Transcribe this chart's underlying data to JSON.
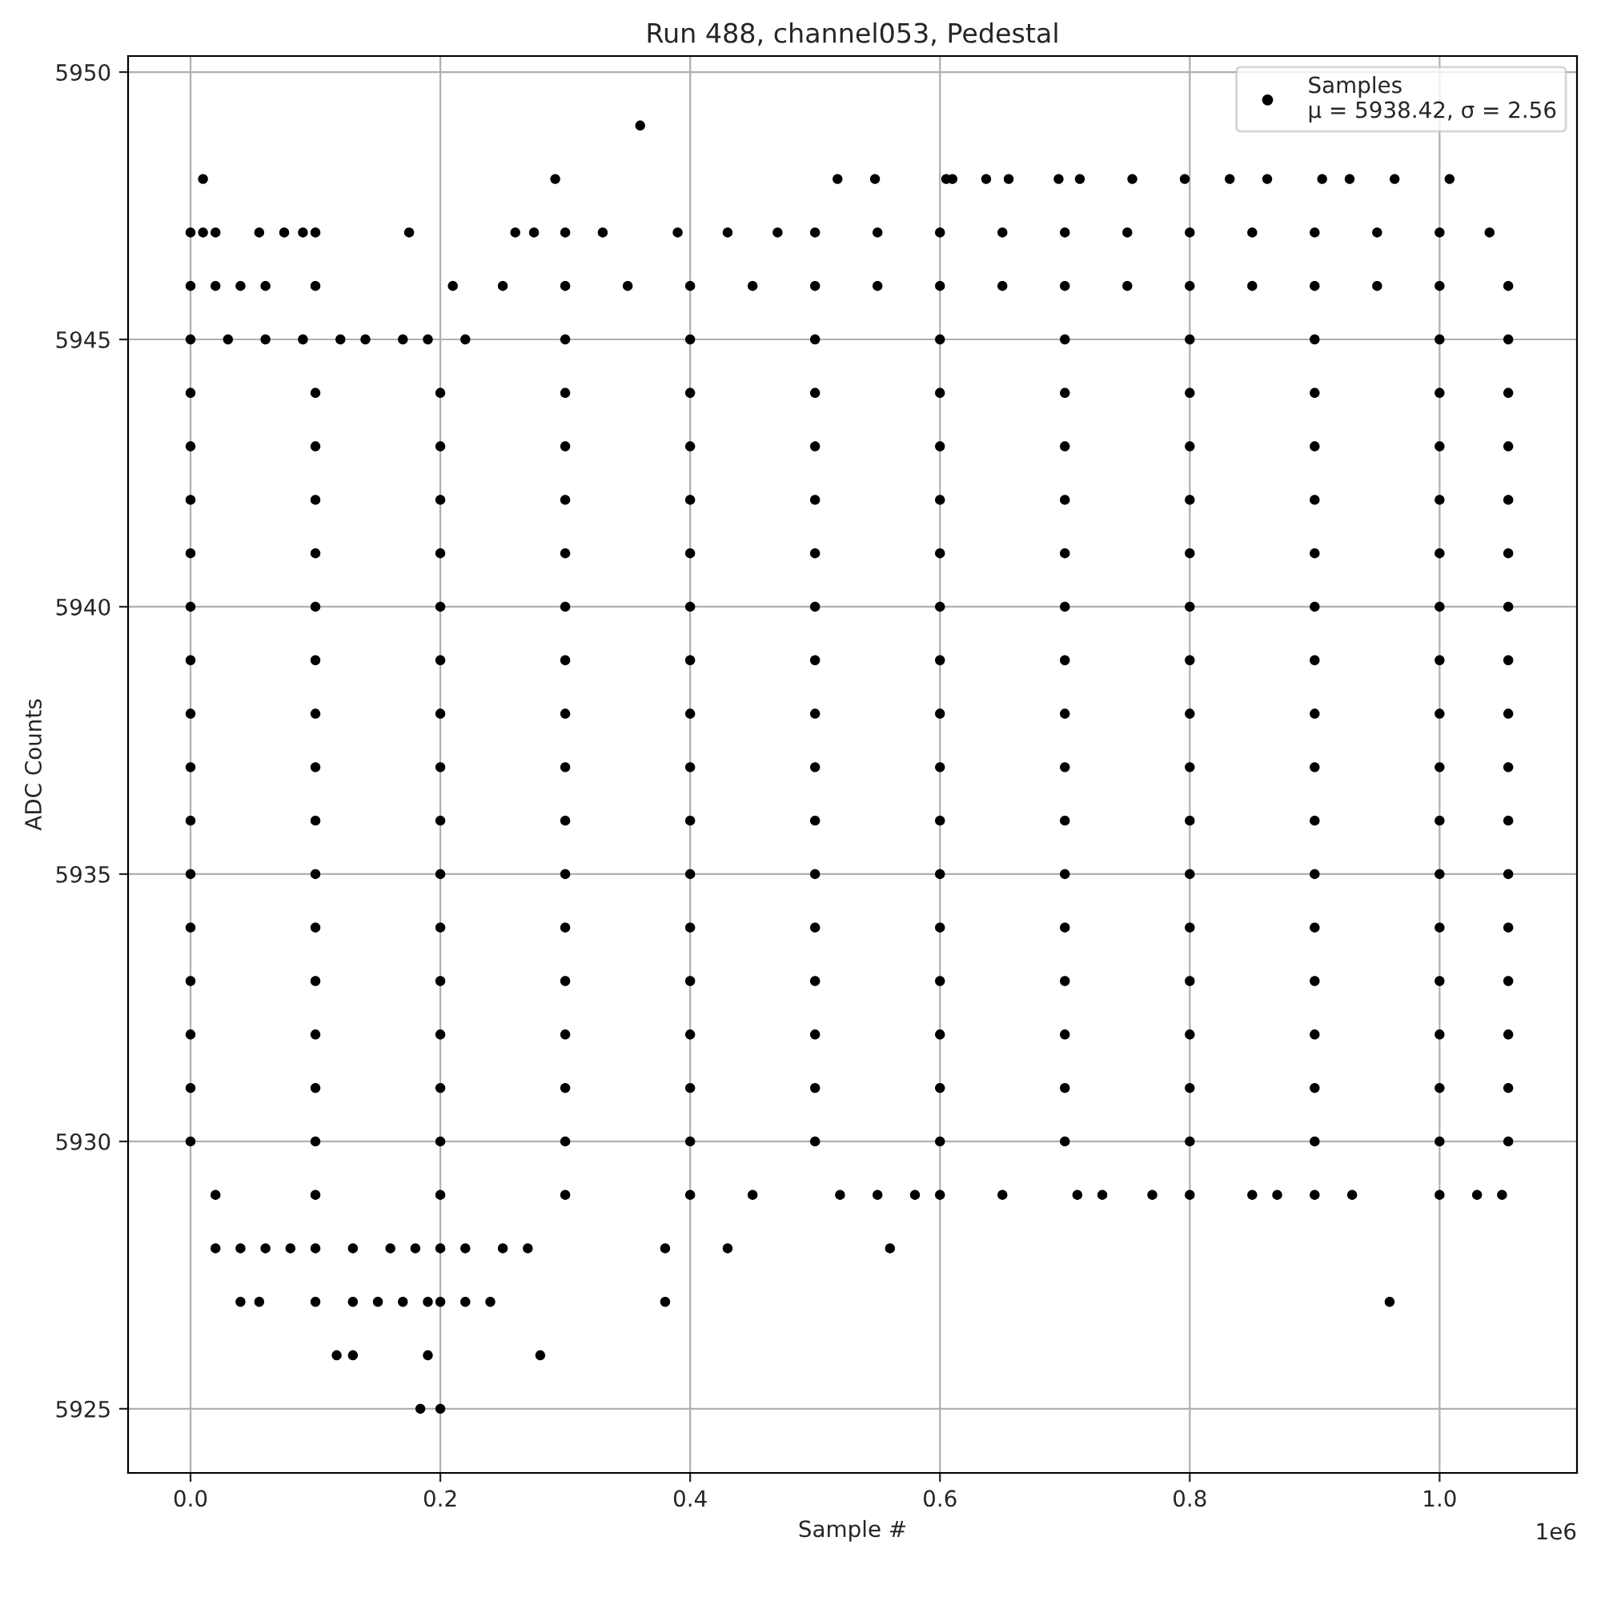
{
  "chart_data": {
    "type": "scatter",
    "title": "Run 488, channel053, Pedestal",
    "xlabel": "Sample #",
    "ylabel": "ADC Counts",
    "annotations": [
      "1e6"
    ],
    "xlim": [
      -0.05,
      1.11
    ],
    "ylim": [
      5923.8,
      5950.3
    ],
    "xticks": [
      {
        "value": 0,
        "label": "0.0"
      },
      0.2,
      0.4,
      0.6,
      0.8,
      {
        "value": 1,
        "label": "1.0"
      }
    ],
    "yticks": [
      5925,
      5930,
      5935,
      5940,
      5945,
      5950
    ],
    "grid": true,
    "legend": "top right",
    "marker": "circle",
    "series": [
      {
        "name": "Samples\nμ = 5938.42, σ = 2.56",
        "color": "#000000",
        "x": [
          0.36,
          0.01,
          0.292,
          0.518,
          0.548,
          0.605,
          0.61,
          0.637,
          0.655,
          0.695,
          0.712,
          0.754,
          0.796,
          0.832,
          0.862,
          0.906,
          0.928,
          0.964,
          1.008,
          0,
          0.01,
          0.02,
          0.055,
          0.075,
          0.09,
          0.1,
          0.175,
          0.26,
          0.275,
          0.3,
          0.33,
          0.39,
          0.43,
          0.47,
          0.5,
          0.55,
          0.6,
          0.65,
          0.7,
          0.75,
          0.8,
          0.85,
          0.9,
          0.95,
          1.0,
          1.04,
          0,
          0.02,
          0.04,
          0.06,
          0.1,
          0.21,
          0.25,
          0.3,
          0.35,
          0.4,
          0.45,
          0.5,
          0.55,
          0.6,
          0.65,
          0.7,
          0.75,
          0.8,
          0.85,
          0.9,
          0.95,
          1.0,
          1.055,
          0,
          0.03,
          0.06,
          0.09,
          0.12,
          0.14,
          0.17,
          0.19,
          0.22,
          0.3,
          0.4,
          0.5,
          0.6,
          0.7,
          0.8,
          0.9,
          1.0,
          1.055,
          0,
          0.1,
          0.2,
          0.3,
          0.4,
          0.5,
          0.6,
          0.7,
          0.8,
          0.9,
          1.0,
          1.055,
          0,
          0.1,
          0.2,
          0.3,
          0.4,
          0.5,
          0.6,
          0.7,
          0.8,
          0.9,
          1.0,
          1.055,
          0,
          0.1,
          0.2,
          0.3,
          0.4,
          0.5,
          0.6,
          0.7,
          0.8,
          0.9,
          1.0,
          1.055,
          0,
          0.1,
          0.2,
          0.3,
          0.4,
          0.5,
          0.6,
          0.7,
          0.8,
          0.9,
          1.0,
          1.055,
          0,
          0.1,
          0.2,
          0.3,
          0.4,
          0.5,
          0.6,
          0.7,
          0.8,
          0.9,
          1.0,
          1.055,
          0,
          0.1,
          0.2,
          0.3,
          0.4,
          0.5,
          0.6,
          0.7,
          0.8,
          0.9,
          1.0,
          1.055,
          0,
          0.1,
          0.2,
          0.3,
          0.4,
          0.5,
          0.6,
          0.7,
          0.8,
          0.9,
          1.0,
          1.055,
          0,
          0.1,
          0.2,
          0.3,
          0.4,
          0.5,
          0.6,
          0.7,
          0.8,
          0.9,
          1.0,
          1.055,
          0,
          0.1,
          0.2,
          0.3,
          0.4,
          0.5,
          0.6,
          0.7,
          0.8,
          0.9,
          1.0,
          1.055,
          0,
          0.1,
          0.2,
          0.3,
          0.4,
          0.5,
          0.6,
          0.7,
          0.8,
          0.9,
          1.0,
          1.055,
          0,
          0.1,
          0.2,
          0.3,
          0.4,
          0.5,
          0.6,
          0.7,
          0.8,
          0.9,
          1.0,
          1.055,
          0,
          0.1,
          0.2,
          0.3,
          0.4,
          0.5,
          0.6,
          0.7,
          0.8,
          0.9,
          1.0,
          1.055,
          0,
          0.1,
          0.2,
          0.3,
          0.4,
          0.5,
          0.6,
          0.7,
          0.8,
          0.9,
          1.0,
          1.055,
          0,
          0.1,
          0.2,
          0.3,
          0.4,
          0.5,
          0.6,
          0.7,
          0.8,
          0.9,
          1.0,
          1.055,
          0,
          0.1,
          0.2,
          0.3,
          0.4,
          0.5,
          0.6,
          0.7,
          0.8,
          0.9,
          1.0,
          1.055,
          0.02,
          0.1,
          0.2,
          0.3,
          0.4,
          0.45,
          0.52,
          0.55,
          0.58,
          0.6,
          0.65,
          0.71,
          0.73,
          0.77,
          0.8,
          0.85,
          0.87,
          0.9,
          0.93,
          1.0,
          1.03,
          1.05,
          0.02,
          0.04,
          0.06,
          0.08,
          0.1,
          0.13,
          0.16,
          0.18,
          0.2,
          0.22,
          0.25,
          0.27,
          0.38,
          0.43,
          0.56,
          0.04,
          0.055,
          0.1,
          0.13,
          0.15,
          0.17,
          0.19,
          0.2,
          0.22,
          0.24,
          0.38,
          0.96,
          0.117,
          0.13,
          0.19,
          0.28,
          0.184,
          0.2
        ],
        "values": [
          5949,
          5948,
          5948,
          5948,
          5948,
          5948,
          5948,
          5948,
          5948,
          5948,
          5948,
          5948,
          5948,
          5948,
          5948,
          5948,
          5948,
          5948,
          5948,
          5947,
          5947,
          5947,
          5947,
          5947,
          5947,
          5947,
          5947,
          5947,
          5947,
          5947,
          5947,
          5947,
          5947,
          5947,
          5947,
          5947,
          5947,
          5947,
          5947,
          5947,
          5947,
          5947,
          5947,
          5947,
          5947,
          5947,
          5946,
          5946,
          5946,
          5946,
          5946,
          5946,
          5946,
          5946,
          5946,
          5946,
          5946,
          5946,
          5946,
          5946,
          5946,
          5946,
          5946,
          5946,
          5946,
          5946,
          5946,
          5946,
          5946,
          5945,
          5945,
          5945,
          5945,
          5945,
          5945,
          5945,
          5945,
          5945,
          5945,
          5945,
          5945,
          5945,
          5945,
          5945,
          5945,
          5945,
          5945,
          5944,
          5944,
          5944,
          5944,
          5944,
          5944,
          5944,
          5944,
          5944,
          5944,
          5944,
          5944,
          5943,
          5943,
          5943,
          5943,
          5943,
          5943,
          5943,
          5943,
          5943,
          5943,
          5943,
          5943,
          5942,
          5942,
          5942,
          5942,
          5942,
          5942,
          5942,
          5942,
          5942,
          5942,
          5942,
          5942,
          5941,
          5941,
          5941,
          5941,
          5941,
          5941,
          5941,
          5941,
          5941,
          5941,
          5941,
          5941,
          5940,
          5940,
          5940,
          5940,
          5940,
          5940,
          5940,
          5940,
          5940,
          5940,
          5940,
          5940,
          5939,
          5939,
          5939,
          5939,
          5939,
          5939,
          5939,
          5939,
          5939,
          5939,
          5939,
          5939,
          5938,
          5938,
          5938,
          5938,
          5938,
          5938,
          5938,
          5938,
          5938,
          5938,
          5938,
          5938,
          5937,
          5937,
          5937,
          5937,
          5937,
          5937,
          5937,
          5937,
          5937,
          5937,
          5937,
          5937,
          5936,
          5936,
          5936,
          5936,
          5936,
          5936,
          5936,
          5936,
          5936,
          5936,
          5936,
          5936,
          5935,
          5935,
          5935,
          5935,
          5935,
          5935,
          5935,
          5935,
          5935,
          5935,
          5935,
          5935,
          5934,
          5934,
          5934,
          5934,
          5934,
          5934,
          5934,
          5934,
          5934,
          5934,
          5934,
          5934,
          5933,
          5933,
          5933,
          5933,
          5933,
          5933,
          5933,
          5933,
          5933,
          5933,
          5933,
          5933,
          5932,
          5932,
          5932,
          5932,
          5932,
          5932,
          5932,
          5932,
          5932,
          5932,
          5932,
          5932,
          5931,
          5931,
          5931,
          5931,
          5931,
          5931,
          5931,
          5931,
          5931,
          5931,
          5931,
          5931,
          5930,
          5930,
          5930,
          5930,
          5930,
          5930,
          5930,
          5930,
          5930,
          5930,
          5930,
          5930,
          5929,
          5929,
          5929,
          5929,
          5929,
          5929,
          5929,
          5929,
          5929,
          5929,
          5929,
          5929,
          5929,
          5929,
          5929,
          5929,
          5929,
          5929,
          5929,
          5929,
          5929,
          5929,
          5928,
          5928,
          5928,
          5928,
          5928,
          5928,
          5928,
          5928,
          5928,
          5928,
          5928,
          5928,
          5928,
          5928,
          5928,
          5927,
          5927,
          5927,
          5927,
          5927,
          5927,
          5927,
          5927,
          5927,
          5927,
          5927,
          5927,
          5926,
          5926,
          5926,
          5926,
          5925,
          5925
        ]
      }
    ]
  }
}
